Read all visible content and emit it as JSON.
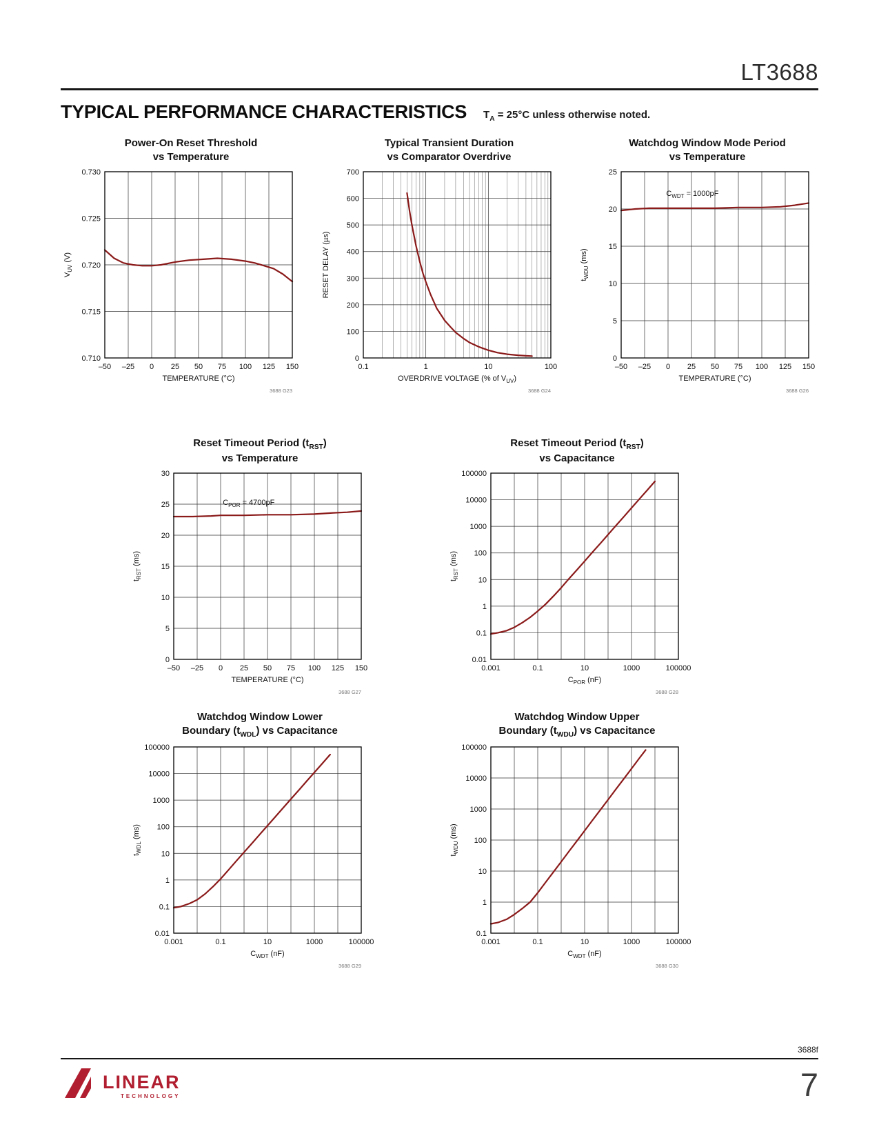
{
  "page": {
    "part_number": "LT3688",
    "section_title": "TYPICAL PERFORMANCE CHARACTERISTICS",
    "section_note": "T~A~ = 25°C unless otherwise noted.",
    "footer_code": "3688f",
    "page_number": "7",
    "logo_text": "LINEAR",
    "logo_subtext": "TECHNOLOGY"
  },
  "colors": {
    "curve": "#8b1a1a",
    "logo_red": "#b01e2f",
    "rule": "#161616"
  },
  "chart_data": [
    {
      "type": "line",
      "code": "3688 G23",
      "title_lines": [
        "Power-On Reset Threshold",
        "vs Temperature"
      ],
      "xlabel": "TEMPERATURE (°C)",
      "ylabel": "V~UV~ (V)",
      "xscale": "linear",
      "yscale": "linear",
      "xlim": [
        -50,
        150
      ],
      "ylim": [
        0.71,
        0.73
      ],
      "xticks": {
        "values": [
          -50,
          -25,
          0,
          25,
          50,
          75,
          100,
          125,
          150
        ],
        "labels": [
          "–50",
          "–25",
          "0",
          "25",
          "50",
          "75",
          "100",
          "125",
          "150"
        ]
      },
      "yticks": {
        "values": [
          0.71,
          0.715,
          0.72,
          0.725,
          0.73
        ],
        "labels": [
          "0.710",
          "0.715",
          "0.720",
          "0.725",
          "0.730"
        ]
      },
      "series": [
        {
          "x": [
            -50,
            -40,
            -30,
            -20,
            -10,
            0,
            10,
            25,
            40,
            55,
            70,
            85,
            100,
            110,
            120,
            130,
            140,
            150
          ],
          "y": [
            0.7216,
            0.7207,
            0.7202,
            0.72,
            0.7199,
            0.7199,
            0.72,
            0.7203,
            0.7205,
            0.7206,
            0.7207,
            0.7206,
            0.7204,
            0.7202,
            0.7199,
            0.7196,
            0.719,
            0.7182
          ]
        }
      ]
    },
    {
      "type": "line",
      "code": "3688 G24",
      "title_lines": [
        "Typical Transient Duration",
        "vs Comparator Overdrive"
      ],
      "xlabel": "OVERDRIVE VOLTAGE (% of V~UV~)",
      "ylabel": "RESET DELAY (µs)",
      "xscale": "log",
      "yscale": "linear",
      "xminor": true,
      "xlim": [
        0.1,
        100
      ],
      "ylim": [
        0,
        700
      ],
      "xticks": {
        "values": [
          0.1,
          1,
          10,
          100
        ],
        "labels": [
          "0.1",
          "1",
          "10",
          "100"
        ]
      },
      "yticks": {
        "values": [
          0,
          100,
          200,
          300,
          400,
          500,
          600,
          700
        ],
        "labels": [
          "0",
          "100",
          "200",
          "300",
          "400",
          "500",
          "600",
          "700"
        ]
      },
      "series": [
        {
          "x": [
            0.5,
            0.55,
            0.6,
            0.7,
            0.8,
            0.9,
            1,
            1.2,
            1.5,
            2,
            2.5,
            3,
            4,
            5,
            7,
            10,
            14,
            20,
            30,
            40,
            50
          ],
          "y": [
            620,
            552,
            498,
            420,
            362,
            318,
            286,
            237,
            186,
            141,
            116,
            96,
            73,
            58,
            42,
            29,
            20,
            14,
            10,
            8,
            7
          ]
        }
      ]
    },
    {
      "type": "line",
      "code": "3688 G26",
      "title_lines": [
        "Watchdog Window Mode Period",
        "vs Temperature"
      ],
      "xlabel": "TEMPERATURE (°C)",
      "ylabel": "t~WDU~ (ms)",
      "xscale": "linear",
      "yscale": "linear",
      "xlim": [
        -50,
        150
      ],
      "ylim": [
        0,
        25
      ],
      "xticks": {
        "values": [
          -50,
          -25,
          0,
          25,
          50,
          75,
          100,
          125,
          150
        ],
        "labels": [
          "–50",
          "–25",
          "0",
          "25",
          "50",
          "75",
          "100",
          "125",
          "150"
        ]
      },
      "yticks": {
        "values": [
          0,
          5,
          10,
          15,
          20,
          25
        ],
        "labels": [
          "0",
          "5",
          "10",
          "15",
          "20",
          "25"
        ]
      },
      "annotation": {
        "text": "C~WDT~ = 1000pF",
        "fx": 0.38,
        "fy": 0.13
      },
      "series": [
        {
          "x": [
            -50,
            -35,
            -20,
            0,
            25,
            50,
            75,
            100,
            120,
            135,
            150
          ],
          "y": [
            19.8,
            20.0,
            20.1,
            20.1,
            20.1,
            20.1,
            20.2,
            20.2,
            20.3,
            20.5,
            20.8
          ]
        }
      ]
    },
    {
      "type": "line",
      "code": "3688 G27",
      "title_lines": [
        "Reset Timeout Period (t~RST~)",
        "vs Temperature"
      ],
      "xlabel": "TEMPERATURE (°C)",
      "ylabel": "t~RST~ (ms)",
      "xscale": "linear",
      "yscale": "linear",
      "xlim": [
        -50,
        150
      ],
      "ylim": [
        0,
        30
      ],
      "xticks": {
        "values": [
          -50,
          -25,
          0,
          25,
          50,
          75,
          100,
          125,
          150
        ],
        "labels": [
          "–50",
          "–25",
          "0",
          "25",
          "50",
          "75",
          "100",
          "125",
          "150"
        ]
      },
      "yticks": {
        "values": [
          0,
          5,
          10,
          15,
          20,
          25,
          30
        ],
        "labels": [
          "0",
          "5",
          "10",
          "15",
          "20",
          "25",
          "30"
        ]
      },
      "annotation": {
        "text": "C~POR~ = 4700pF",
        "fx": 0.4,
        "fy": 0.17
      },
      "series": [
        {
          "x": [
            -50,
            -30,
            -10,
            0,
            15,
            25,
            50,
            75,
            100,
            120,
            135,
            150
          ],
          "y": [
            23.0,
            23.0,
            23.1,
            23.2,
            23.2,
            23.2,
            23.3,
            23.3,
            23.4,
            23.6,
            23.7,
            23.9
          ]
        }
      ]
    },
    {
      "type": "line",
      "code": "3688 G28",
      "title_lines": [
        "Reset Timeout Period (t~RST~)",
        "vs Capacitance"
      ],
      "xlabel": "C~POR~ (nF)",
      "ylabel": "t~RST~ (ms)",
      "xscale": "log",
      "yscale": "log",
      "xlim": [
        0.001,
        100000
      ],
      "ylim": [
        0.01,
        100000
      ],
      "xticks": {
        "values": [
          0.001,
          0.01,
          0.1,
          1,
          10,
          100,
          1000,
          10000,
          100000
        ],
        "labels": [
          "0.001",
          "",
          "0.1",
          "",
          "10",
          "",
          "1000",
          "",
          "100000"
        ]
      },
      "yticks": {
        "values": [
          0.01,
          0.1,
          1,
          10,
          100,
          1000,
          10000,
          100000
        ],
        "labels": [
          "0.01",
          "0.1",
          "1",
          "10",
          "100",
          "1000",
          "10000",
          "100000"
        ]
      },
      "series": [
        {
          "x": [
            0.001,
            0.002,
            0.0047,
            0.01,
            0.022,
            0.047,
            0.1,
            0.22,
            0.47,
            1,
            2.2,
            4.7,
            10,
            22,
            47,
            100,
            220,
            470,
            1000,
            2200,
            4700,
            10000
          ],
          "y": [
            0.09,
            0.1,
            0.12,
            0.16,
            0.24,
            0.38,
            0.65,
            1.2,
            2.4,
            4.9,
            11,
            23,
            49,
            108,
            230,
            490,
            1080,
            2300,
            4900,
            10800,
            23000,
            49000
          ]
        }
      ]
    },
    {
      "type": "line",
      "code": "3688 G29",
      "title_lines": [
        "Watchdog Window Lower",
        "Boundary (t~WDL~) vs Capacitance"
      ],
      "xlabel": "C~WDT~ (nF)",
      "ylabel": "t~WDL~ (ms)",
      "xscale": "log",
      "yscale": "log",
      "xlim": [
        0.001,
        100000
      ],
      "ylim": [
        0.01,
        100000
      ],
      "xticks": {
        "values": [
          0.001,
          0.01,
          0.1,
          1,
          10,
          100,
          1000,
          10000,
          100000
        ],
        "labels": [
          "0.001",
          "",
          "0.1",
          "",
          "10",
          "",
          "1000",
          "",
          "100000"
        ]
      },
      "yticks": {
        "values": [
          0.01,
          0.1,
          1,
          10,
          100,
          1000,
          10000,
          100000
        ],
        "labels": [
          "0.01",
          "0.1",
          "1",
          "10",
          "100",
          "1000",
          "10000",
          "100000"
        ]
      },
      "series": [
        {
          "x": [
            0.001,
            0.002,
            0.0047,
            0.01,
            0.022,
            0.047,
            0.1,
            0.22,
            0.47,
            1,
            2.2,
            4.7,
            10,
            22,
            47,
            100,
            220,
            470,
            1000,
            2200,
            4700
          ],
          "y": [
            0.09,
            0.1,
            0.13,
            0.18,
            0.3,
            0.56,
            1.1,
            2.4,
            5.2,
            11,
            24,
            52,
            110,
            240,
            520,
            1100,
            2400,
            5200,
            11000,
            24000,
            52000
          ]
        }
      ]
    },
    {
      "type": "line",
      "code": "3688 G30",
      "title_lines": [
        "Watchdog Window Upper",
        "Boundary (t~WDU~) vs Capacitance"
      ],
      "xlabel": "C~WDT~ (nF)",
      "ylabel": "t~WDU~ (ms)",
      "xscale": "log",
      "yscale": "log",
      "xlim": [
        0.001,
        100000
      ],
      "ylim": [
        0.1,
        100000
      ],
      "xticks": {
        "values": [
          0.001,
          0.01,
          0.1,
          1,
          10,
          100,
          1000,
          10000,
          100000
        ],
        "labels": [
          "0.001",
          "",
          "0.1",
          "",
          "10",
          "",
          "1000",
          "",
          "100000"
        ]
      },
      "yticks": {
        "values": [
          0.1,
          1,
          10,
          100,
          1000,
          10000,
          100000
        ],
        "labels": [
          "0.1",
          "1",
          "10",
          "100",
          "1000",
          "10000",
          "100000"
        ]
      },
      "series": [
        {
          "x": [
            0.001,
            0.002,
            0.0047,
            0.01,
            0.022,
            0.047,
            0.1,
            0.22,
            0.47,
            1,
            2.2,
            4.7,
            10,
            22,
            47,
            100,
            220,
            470,
            1000,
            2200,
            4000
          ],
          "y": [
            0.2,
            0.22,
            0.28,
            0.4,
            0.62,
            1.0,
            2,
            4.4,
            9.4,
            20,
            44,
            94,
            200,
            440,
            940,
            2000,
            4400,
            9400,
            20000,
            44000,
            80000
          ]
        }
      ]
    }
  ]
}
